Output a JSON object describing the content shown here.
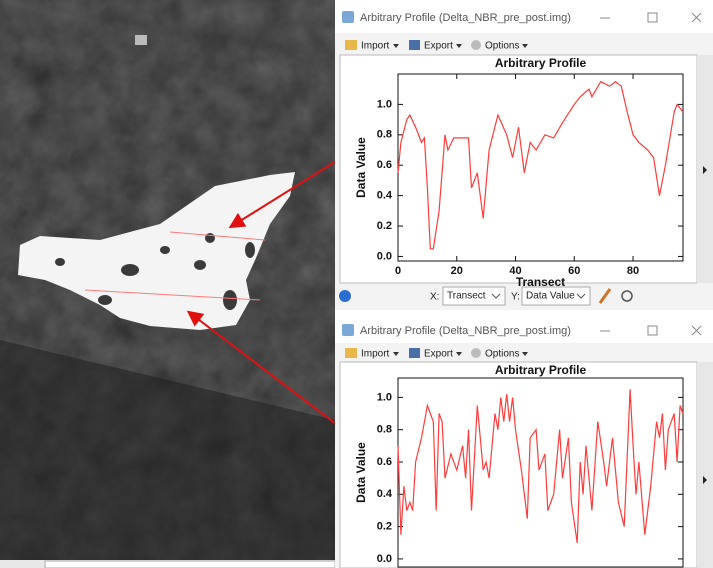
{
  "windows": [
    {
      "title": "Arbitrary Profile  (Delta_NBR_pre_post.img)",
      "menu": [
        "Import",
        "Export",
        "Options"
      ],
      "x_selector_label": "X:",
      "x_selector": "Transect",
      "y_selector_label": "Y:",
      "y_selector": "Data Value"
    },
    {
      "title": "Arbitrary Profile  (Delta_NBR_pre_post.img)",
      "menu": [
        "Import",
        "Export",
        "Options"
      ]
    }
  ],
  "chart_data": [
    {
      "type": "line",
      "title": "Arbitrary Profile",
      "xlabel": "Transect",
      "ylabel": "Data Value",
      "color": "#ff3b3b",
      "x": [
        0,
        1,
        3,
        4,
        6,
        8,
        9,
        10,
        11,
        12,
        14,
        16,
        17,
        19,
        22,
        24,
        25,
        27,
        29,
        31,
        34,
        37,
        39,
        41,
        43,
        45,
        47,
        50,
        53,
        56,
        60,
        62,
        65,
        66,
        69,
        72,
        74,
        76,
        78,
        80,
        82,
        85,
        87,
        89,
        91,
        94,
        95,
        97
      ],
      "values": [
        0.55,
        0.75,
        0.9,
        0.93,
        0.85,
        0.75,
        0.78,
        0.45,
        0.05,
        0.05,
        0.3,
        0.8,
        0.7,
        0.78,
        0.78,
        0.78,
        0.45,
        0.55,
        0.25,
        0.7,
        0.93,
        0.8,
        0.65,
        0.85,
        0.55,
        0.75,
        0.7,
        0.8,
        0.78,
        0.88,
        1.0,
        1.05,
        1.1,
        1.05,
        1.15,
        1.12,
        1.15,
        1.12,
        0.95,
        0.8,
        0.75,
        0.7,
        0.65,
        0.4,
        0.6,
        0.95,
        1.0,
        0.95
      ],
      "xlim": [
        0,
        97
      ],
      "ylim": [
        -0.03,
        1.2
      ],
      "xticks": [
        0,
        20,
        40,
        60,
        80
      ],
      "yticks": [
        {
          "value": 0,
          "label": "0.0"
        },
        0.2,
        0.4,
        0.6,
        0.8,
        {
          "value": 1,
          "label": "1.0"
        }
      ]
    },
    {
      "type": "line",
      "title": "Arbitrary Profile",
      "ylabel": "Data Value",
      "color": "#ff3b3b",
      "x": [
        0,
        1,
        2,
        3,
        4,
        5,
        6,
        8,
        10,
        12,
        13,
        14,
        15,
        16,
        18,
        20,
        22,
        23,
        24,
        25,
        27,
        29,
        30,
        31,
        33,
        34,
        35,
        36,
        37,
        38,
        39,
        40,
        42,
        44,
        45,
        47,
        48,
        50,
        51,
        53,
        55,
        56,
        58,
        59,
        61,
        62,
        63,
        64,
        65,
        66,
        68,
        70,
        71,
        73,
        75,
        77,
        79,
        80,
        81,
        82,
        84,
        86,
        88,
        89,
        90,
        91,
        92,
        94,
        95,
        96,
        97
      ],
      "values": [
        0.7,
        0.15,
        0.45,
        0.3,
        0.35,
        0.3,
        0.6,
        0.75,
        0.95,
        0.85,
        0.3,
        0.9,
        0.85,
        0.5,
        0.65,
        0.55,
        0.7,
        0.5,
        0.8,
        0.3,
        0.95,
        0.55,
        0.6,
        0.5,
        0.9,
        0.8,
        1.0,
        0.85,
        1.02,
        0.85,
        1.0,
        0.8,
        0.55,
        0.25,
        0.75,
        0.8,
        0.55,
        0.65,
        0.3,
        0.4,
        0.8,
        0.5,
        0.75,
        0.35,
        0.1,
        0.6,
        0.4,
        0.7,
        0.5,
        0.3,
        0.85,
        0.6,
        0.45,
        0.75,
        0.35,
        0.2,
        1.05,
        0.7,
        0.4,
        0.6,
        0.15,
        0.45,
        0.85,
        0.75,
        0.9,
        0.55,
        0.8,
        0.9,
        0.6,
        0.95,
        0.9
      ],
      "xlim": [
        0,
        97
      ],
      "ylim": [
        -0.05,
        1.12
      ],
      "yticks": [
        {
          "value": 0,
          "label": "0.0"
        },
        0.2,
        0.4,
        0.6,
        0.8,
        {
          "value": 1,
          "label": "1.0"
        }
      ]
    }
  ]
}
